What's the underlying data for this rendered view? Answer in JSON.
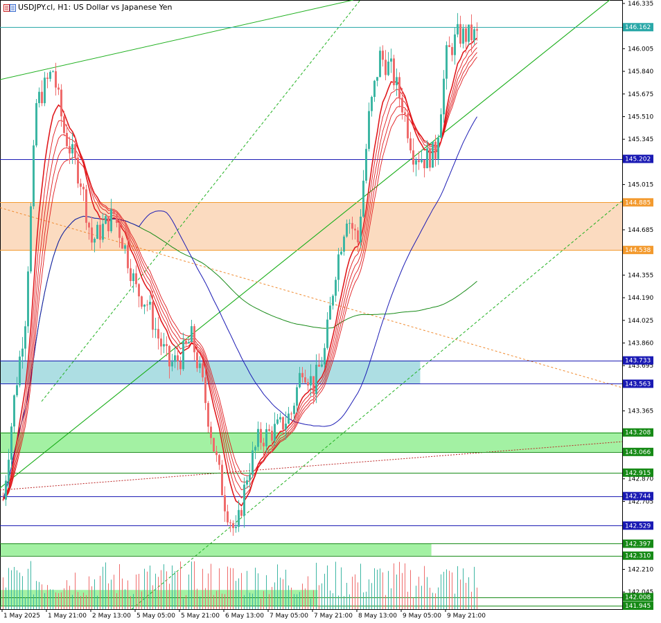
{
  "window": {
    "title": "USDJPY.cl, H1:  US Dollar vs Japanese Yen",
    "icon": "chart-window-icon"
  },
  "colors": {
    "bg": "#ffffff",
    "bull": "#3cb6a3",
    "bear": "#ef6b6b",
    "zone_orange": "#fbd9bd",
    "zone_blue": "#a9dce2",
    "zone_green": "#9ef09e",
    "ema_red": "#e0181c",
    "ma_blue": "#1a1ab4",
    "ma_green": "#168a16",
    "channel_green": "#1fb01f"
  },
  "price_axis": {
    "ticks": [
      "146.335",
      "146.005",
      "145.840",
      "145.675",
      "145.510",
      "145.345",
      "145.015",
      "144.685",
      "144.355",
      "144.190",
      "144.025",
      "143.860",
      "143.695",
      "143.365",
      "142.870",
      "142.705",
      "142.210",
      "142.045"
    ],
    "tick_values": [
      146.335,
      146.005,
      145.84,
      145.675,
      145.51,
      145.345,
      145.015,
      144.685,
      144.355,
      144.19,
      144.025,
      143.86,
      143.695,
      143.365,
      142.87,
      142.705,
      142.21,
      142.045
    ],
    "min": 141.92,
    "max": 146.36
  },
  "levels": [
    {
      "label": "146.162",
      "value": 146.162,
      "color": "#2aa8a8",
      "text_color": "#ffffff",
      "style": "solid"
    },
    {
      "label": "145.202",
      "value": 145.202,
      "color": "#1a1ab4",
      "text_color": "#ffffff",
      "style": "solid"
    },
    {
      "label": "144.885",
      "value": 144.885,
      "color": "#f39a2e",
      "text_color": "#ffffff",
      "style": "solid"
    },
    {
      "label": "144.538",
      "value": 144.538,
      "color": "#f39a2e",
      "text_color": "#ffffff",
      "style": "solid"
    },
    {
      "label": "143.733",
      "value": 143.733,
      "color": "#1a1ab4",
      "text_color": "#ffffff",
      "style": "solid"
    },
    {
      "label": "143.563",
      "value": 143.563,
      "color": "#1a1ab4",
      "text_color": "#ffffff",
      "style": "solid"
    },
    {
      "label": "143.208",
      "value": 143.208,
      "color": "#168a16",
      "text_color": "#ffffff",
      "style": "solid"
    },
    {
      "label": "143.066",
      "value": 143.066,
      "color": "#168a16",
      "text_color": "#ffffff",
      "style": "solid"
    },
    {
      "label": "142.915",
      "value": 142.915,
      "color": "#168a16",
      "text_color": "#ffffff",
      "style": "solid"
    },
    {
      "label": "142.744",
      "value": 142.744,
      "color": "#1a1ab4",
      "text_color": "#ffffff",
      "style": "solid"
    },
    {
      "label": "142.529",
      "value": 142.529,
      "color": "#1a1ab4",
      "text_color": "#ffffff",
      "style": "solid"
    },
    {
      "label": "142.397",
      "value": 142.397,
      "color": "#168a16",
      "text_color": "#ffffff",
      "style": "solid"
    },
    {
      "label": "142.310",
      "value": 142.31,
      "color": "#168a16",
      "text_color": "#ffffff",
      "style": "solid"
    },
    {
      "label": "142.008",
      "value": 142.008,
      "color": "#168a16",
      "text_color": "#ffffff",
      "style": "solid"
    },
    {
      "label": "141.945",
      "value": 141.945,
      "color": "#168a16",
      "text_color": "#ffffff",
      "style": "solid"
    }
  ],
  "zones": [
    {
      "top": 144.885,
      "bottom": 144.538,
      "color": "#fbd9bd",
      "x_end": 1.0
    },
    {
      "top": 143.733,
      "bottom": 143.563,
      "color": "#a9dce2",
      "x_end": 0.675
    },
    {
      "top": 143.208,
      "bottom": 143.066,
      "color": "#9ef09e",
      "x_end": 1.0
    },
    {
      "top": 142.397,
      "bottom": 142.31,
      "color": "#9ef09e",
      "x_end": 0.693
    },
    {
      "top": 142.06,
      "bottom": 141.945,
      "color": "#9ef09e",
      "x_end": 0.51
    }
  ],
  "time_axis": {
    "labels": [
      "1 May 2025",
      "1 May 21:00",
      "2 May 13:00",
      "5 May 05:00",
      "5 May 21:00",
      "6 May 13:00",
      "7 May 05:00",
      "7 May 21:00",
      "8 May 13:00",
      "9 May 05:00",
      "9 May 21:00"
    ],
    "bar_index": [
      0,
      16,
      32,
      48,
      64,
      80,
      96,
      112,
      128,
      144,
      160
    ]
  },
  "chart_data": {
    "type": "candlestick",
    "symbol": "USDJPY.cl",
    "timeframe": "H1",
    "key_closes": [
      [
        0,
        142.72
      ],
      [
        4,
        143.45
      ],
      [
        8,
        144.05
      ],
      [
        12,
        145.6
      ],
      [
        18,
        145.85
      ],
      [
        22,
        145.4
      ],
      [
        28,
        145.05
      ],
      [
        32,
        144.6
      ],
      [
        36,
        144.7
      ],
      [
        40,
        144.8
      ],
      [
        44,
        144.55
      ],
      [
        48,
        144.25
      ],
      [
        52,
        144.15
      ],
      [
        56,
        143.9
      ],
      [
        60,
        143.7
      ],
      [
        64,
        143.75
      ],
      [
        68,
        143.9
      ],
      [
        72,
        143.55
      ],
      [
        76,
        143.1
      ],
      [
        80,
        142.7
      ],
      [
        84,
        142.45
      ],
      [
        88,
        142.9
      ],
      [
        92,
        143.15
      ],
      [
        96,
        143.2
      ],
      [
        100,
        143.25
      ],
      [
        104,
        143.35
      ],
      [
        108,
        143.7
      ],
      [
        112,
        143.55
      ],
      [
        116,
        143.8
      ],
      [
        120,
        144.4
      ],
      [
        124,
        144.8
      ],
      [
        128,
        144.6
      ],
      [
        132,
        145.5
      ],
      [
        136,
        145.95
      ],
      [
        140,
        145.85
      ],
      [
        144,
        145.6
      ],
      [
        148,
        145.25
      ],
      [
        152,
        145.2
      ],
      [
        156,
        145.25
      ],
      [
        160,
        145.95
      ],
      [
        164,
        146.1
      ]
    ]
  }
}
